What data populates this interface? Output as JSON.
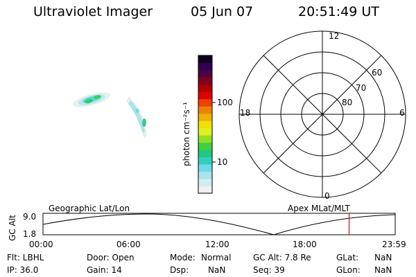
{
  "header": {
    "instrument": "Ultraviolet Imager",
    "date": "05 Jun 07",
    "time": "20:51:49 UT"
  },
  "colorbar": {
    "label": "photon cm⁻²s⁻¹",
    "ticks": [
      "100",
      "10"
    ],
    "colors": [
      "#f0f0f0",
      "#d0eef0",
      "#a8e4ec",
      "#70d8e8",
      "#30d0c0",
      "#20c880",
      "#40d040",
      "#90e020",
      "#e0f020",
      "#f0e000",
      "#f0b000",
      "#f08000",
      "#f04000",
      "#e00000",
      "#b00000",
      "#800020",
      "#500040",
      "#300050",
      "#100020"
    ]
  },
  "polar_plot": {
    "mlt_labels": {
      "top": "12",
      "left": "18",
      "right": "6",
      "bottom": "0"
    },
    "lat_labels": [
      "60",
      "70",
      "80"
    ]
  },
  "timeline": {
    "left_title": "Geographic Lat/Lon",
    "right_title": "Apex MLat/MLT",
    "axis_label": "GC Alt",
    "y_ticks": [
      "9.0",
      "1.8"
    ],
    "x_ticks": [
      "00:00",
      "06:00",
      "12:00",
      "18:00",
      "23:59"
    ],
    "current_time_fraction": 0.869,
    "marker_color": "#e00000"
  },
  "info": {
    "flt": "Flt: LBHL",
    "ip": "IP: 36.0",
    "door": "Door: Open",
    "gain": "Gain: 14",
    "mode_label": "Mode:",
    "mode_value": "Normal",
    "dsp_label": "Dsp:",
    "dsp_value": "NaN",
    "gcalt": "GC Alt: 7.8 Re",
    "seq": "Seq: 39",
    "glat_label": "GLat:",
    "glat_value": "NaN",
    "glon_label": "GLon:",
    "glon_value": "NaN"
  }
}
